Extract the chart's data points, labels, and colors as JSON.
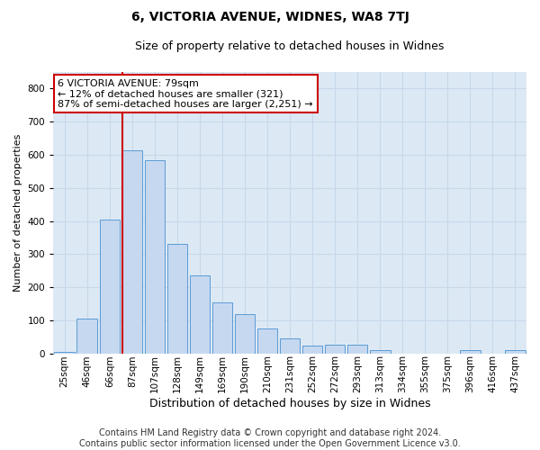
{
  "title": "6, VICTORIA AVENUE, WIDNES, WA8 7TJ",
  "subtitle": "Size of property relative to detached houses in Widnes",
  "xlabel": "Distribution of detached houses by size in Widnes",
  "ylabel": "Number of detached properties",
  "categories": [
    "25sqm",
    "46sqm",
    "66sqm",
    "87sqm",
    "107sqm",
    "128sqm",
    "149sqm",
    "169sqm",
    "190sqm",
    "210sqm",
    "231sqm",
    "252sqm",
    "272sqm",
    "293sqm",
    "313sqm",
    "334sqm",
    "355sqm",
    "375sqm",
    "396sqm",
    "416sqm",
    "437sqm"
  ],
  "values": [
    5,
    105,
    405,
    615,
    585,
    330,
    235,
    155,
    120,
    75,
    47,
    25,
    27,
    27,
    10,
    0,
    0,
    0,
    10,
    0,
    10
  ],
  "bar_color": "#c5d8f0",
  "bar_edge_color": "#5b9bd5",
  "reference_line_label": "6 VICTORIA AVENUE: 79sqm",
  "annotation_text1": "← 12% of detached houses are smaller (321)",
  "annotation_text2": "87% of semi-detached houses are larger (2,251) →",
  "annotation_box_facecolor": "#ffffff",
  "annotation_box_edgecolor": "#cc0000",
  "vline_color": "#cc0000",
  "ylim": [
    0,
    850
  ],
  "yticks": [
    0,
    100,
    200,
    300,
    400,
    500,
    600,
    700,
    800
  ],
  "grid_color": "#c8d8ea",
  "plot_bg_color": "#dce9f5",
  "fig_bg_color": "#ffffff",
  "footer_line1": "Contains HM Land Registry data © Crown copyright and database right 2024.",
  "footer_line2": "Contains public sector information licensed under the Open Government Licence v3.0.",
  "title_fontsize": 10,
  "subtitle_fontsize": 9,
  "xlabel_fontsize": 9,
  "ylabel_fontsize": 8,
  "tick_fontsize": 7.5,
  "annot_fontsize": 8,
  "footer_fontsize": 7
}
